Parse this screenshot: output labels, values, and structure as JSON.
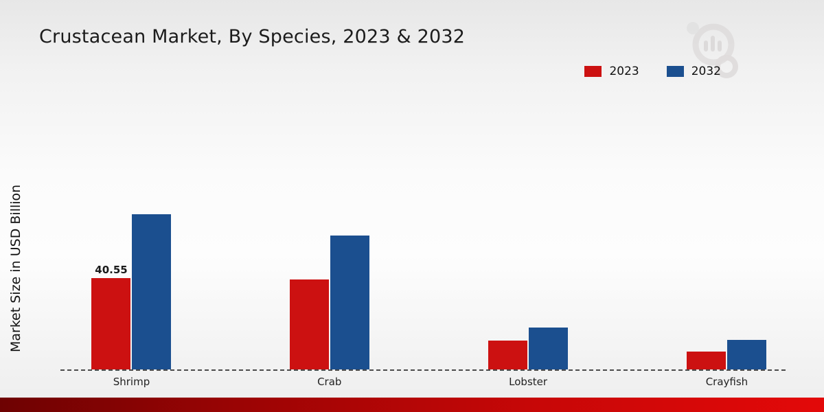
{
  "title": "Crustacean Market, By Species, 2023 & 2032",
  "ylabel": "Market Size in USD Billion",
  "legend": [
    {
      "label": "2023",
      "color": "#cc1111"
    },
    {
      "label": "2032",
      "color": "#1b4f8f"
    }
  ],
  "colors": {
    "series_2023": "#cc1111",
    "series_2032": "#1b4f8f",
    "footer_gradient": [
      "#6e0202",
      "#e30909"
    ]
  },
  "chart_data": {
    "type": "bar",
    "title": "Crustacean Market, By Species, 2023 & 2032",
    "categories": [
      "Shrimp",
      "Crab",
      "Lobster",
      "Crayfish"
    ],
    "series": [
      {
        "name": "2023",
        "color": "#cc1111",
        "values": [
          40.55,
          39.9,
          12.9,
          8.0
        ],
        "labels": [
          "40.55",
          "",
          "",
          ""
        ]
      },
      {
        "name": "2032",
        "color": "#1b4f8f",
        "values": [
          69.0,
          59.6,
          18.7,
          13.2
        ],
        "labels": [
          "",
          "",
          "",
          ""
        ]
      }
    ],
    "xlabel": "",
    "ylabel": "Market Size in USD Billion",
    "ylim": [
      0,
      80
    ],
    "grid": false,
    "baseline_style": "dashed",
    "legend_position": "top-right"
  }
}
